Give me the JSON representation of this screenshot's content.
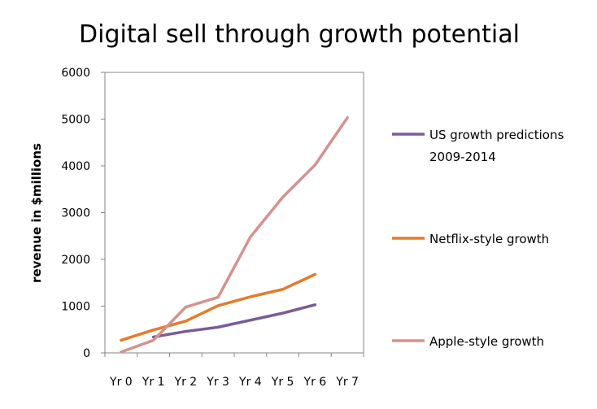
{
  "chart_data": {
    "type": "line",
    "title": "Digital sell through growth potential",
    "xlabel": "",
    "ylabel": "revenue in $millions",
    "categories": [
      "Yr 0",
      "Yr 1",
      "Yr 2",
      "Yr 3",
      "Yr 4",
      "Yr 5",
      "Yr 6",
      "Yr 7"
    ],
    "ylim": [
      0,
      6000
    ],
    "yticks": [
      0,
      1000,
      2000,
      3000,
      4000,
      5000,
      6000
    ],
    "grid": false,
    "legend_position": "right",
    "series": [
      {
        "name_lines": [
          "US growth predictions",
          "2009-2014"
        ],
        "color": "#7b5b95",
        "values": [
          null,
          340,
          460,
          550,
          700,
          850,
          1030,
          null
        ]
      },
      {
        "name_lines": [
          "Netflix-style growth"
        ],
        "color": "#e27c2c",
        "values": [
          270,
          490,
          680,
          1010,
          1200,
          1360,
          1680,
          null
        ]
      },
      {
        "name_lines": [
          "Apple-style growth"
        ],
        "color": "#d4928f",
        "values": [
          20,
          270,
          980,
          1190,
          2480,
          3330,
          4020,
          5030
        ]
      }
    ]
  }
}
